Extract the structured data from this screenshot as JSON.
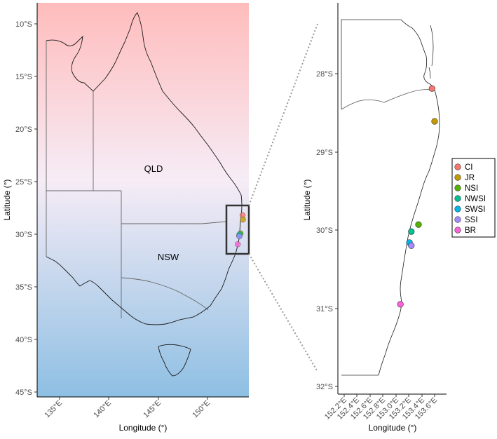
{
  "overview_map": {
    "xlabel": "Longitude (°)",
    "ylabel": "Latitude (°)",
    "x_ticks": [
      "135°E",
      "140°E",
      "145°E",
      "150°E"
    ],
    "y_ticks": [
      "10°S",
      "15°S",
      "20°S",
      "25°S",
      "30°S",
      "35°S",
      "40°S",
      "45°S"
    ],
    "region_labels": [
      "QLD",
      "NSW"
    ],
    "background_gradient": {
      "top": "#ffbcbc",
      "middle": "#f6ecf6",
      "bottom": "#8ebfe3"
    }
  },
  "inset_map": {
    "xlabel": "Longitude (°)",
    "ylabel": "Latitude (°)",
    "x_ticks": [
      "152.2°E",
      "152.4°E",
      "152.6°E",
      "152.8°E",
      "153.0°E",
      "153.2°E",
      "153.4°E",
      "153.6°E"
    ],
    "y_ticks": [
      "28°S",
      "29°S",
      "30°S",
      "31°S",
      "32°S"
    ]
  },
  "legend": {
    "items": [
      {
        "label": "CI",
        "color": "#f8766d"
      },
      {
        "label": "JR",
        "color": "#c49a00"
      },
      {
        "label": "NSI",
        "color": "#53b400"
      },
      {
        "label": "NWSI",
        "color": "#00c094"
      },
      {
        "label": "SWSI",
        "color": "#00b6eb"
      },
      {
        "label": "SSI",
        "color": "#a58aff"
      },
      {
        "label": "BR",
        "color": "#fb61d7"
      }
    ]
  },
  "sites": [
    {
      "label": "CI",
      "lon": 153.56,
      "lat": -28.19
    },
    {
      "label": "JR",
      "lon": 153.6,
      "lat": -28.61
    },
    {
      "label": "NSI",
      "lon": 153.35,
      "lat": -29.93
    },
    {
      "label": "NWSI",
      "lon": 153.24,
      "lat": -30.02
    },
    {
      "label": "SWSI",
      "lon": 153.21,
      "lat": -30.16
    },
    {
      "label": "SSI",
      "lon": 153.24,
      "lat": -30.2
    },
    {
      "label": "BR",
      "lon": 153.07,
      "lat": -30.95
    }
  ]
}
